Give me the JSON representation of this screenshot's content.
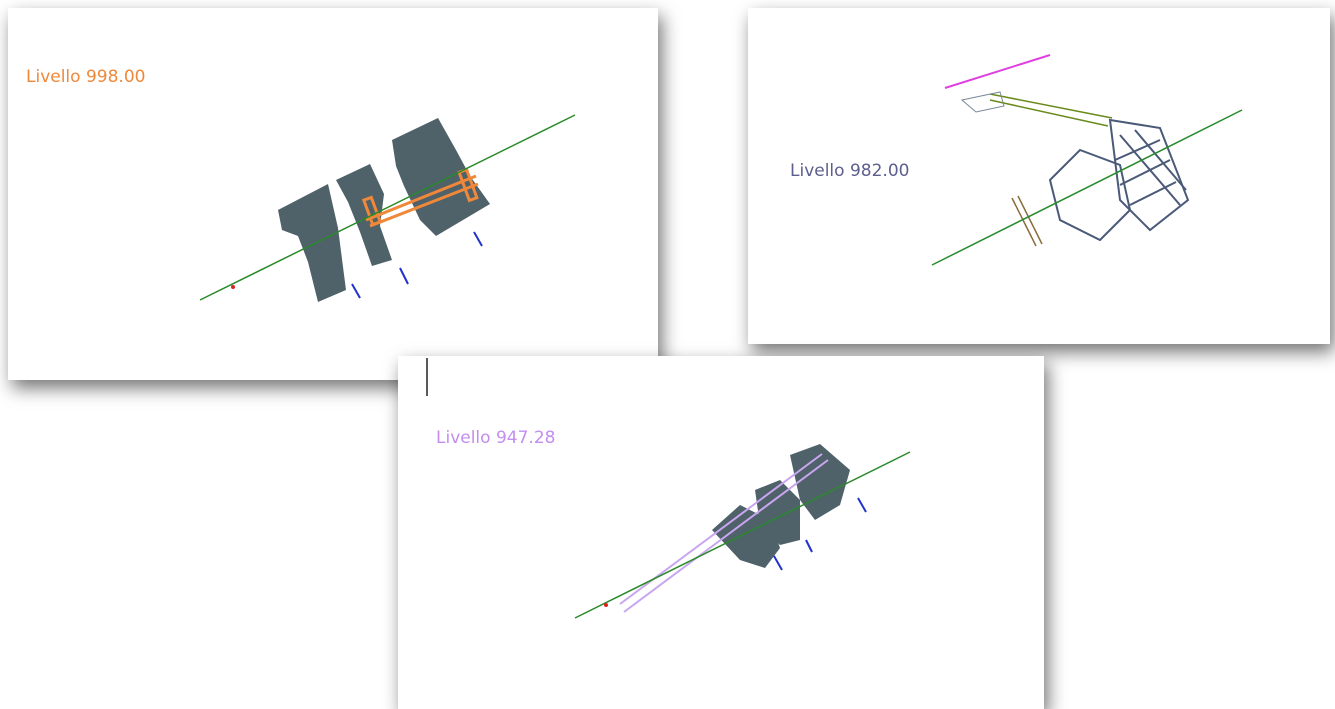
{
  "panels": [
    {
      "label": "Livello 998.00"
    },
    {
      "label": "Livello 982.00"
    },
    {
      "label": "Livello 947.28"
    }
  ]
}
